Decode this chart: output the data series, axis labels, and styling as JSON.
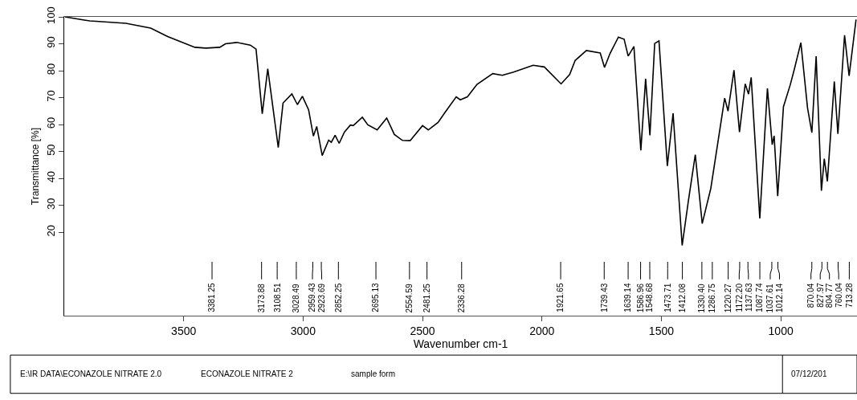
{
  "chart_data": {
    "type": "line",
    "xlabel": "Wavenumber cm-1",
    "ylabel": "Transmittance [%]",
    "xlim": [
      4000,
      681
    ],
    "xticks": [
      3500,
      3000,
      2500,
      2000,
      1500,
      1000
    ],
    "ylim": [
      -11,
      100
    ],
    "yticks": [
      20,
      30,
      40,
      50,
      60,
      70,
      80,
      90,
      100
    ],
    "marker": "none",
    "line_style": "solid",
    "x": [
      3997,
      3916,
      3893,
      3742,
      3638,
      3567,
      3453,
      3406,
      3349,
      3325,
      3278,
      3221,
      3197,
      3171,
      3148,
      3104,
      3084,
      3047,
      3024,
      3003,
      2977,
      2957,
      2943,
      2920,
      2893,
      2882,
      2866,
      2849,
      2827,
      2802,
      2790,
      2752,
      2729,
      2690,
      2650,
      2618,
      2584,
      2552,
      2500,
      2476,
      2435,
      2406,
      2359,
      2342,
      2312,
      2272,
      2206,
      2166,
      2119,
      2037,
      1990,
      1920,
      1884,
      1861,
      1814,
      1756,
      1738,
      1715,
      1680,
      1656,
      1639,
      1615,
      1586,
      1566,
      1548,
      1528,
      1510,
      1475,
      1451,
      1413,
      1387,
      1358,
      1329,
      1293,
      1235,
      1221,
      1196,
      1173,
      1149,
      1135,
      1124,
      1088,
      1056,
      1036,
      1028,
      1013,
      989,
      960,
      943,
      916,
      888,
      870,
      852,
      830,
      818,
      805,
      776,
      761,
      733,
      714,
      685
    ],
    "series": [
      {
        "color": "#000000",
        "values": [
          100,
          98.8,
          98.5,
          97.6,
          95.8,
          92.7,
          88.7,
          88.4,
          88.7,
          90,
          90.5,
          89.5,
          88,
          64,
          80.7,
          51.5,
          68,
          71.4,
          67.4,
          70.5,
          65.5,
          55.7,
          59.3,
          48.5,
          54.2,
          53.4,
          56,
          53,
          57.2,
          59.8,
          59.6,
          62.7,
          59.9,
          58,
          62.4,
          56.3,
          54.1,
          54,
          59.6,
          58,
          60.8,
          64.5,
          70.3,
          69.2,
          70.3,
          74.9,
          78.9,
          78.3,
          79.5,
          82,
          81.4,
          75.1,
          78.6,
          83.8,
          87.5,
          86.6,
          81.2,
          86.4,
          92.5,
          91.7,
          85.4,
          89,
          50.4,
          77,
          56,
          90.1,
          91.1,
          44.6,
          64.2,
          15.1,
          31.6,
          48.8,
          23.2,
          36.3,
          69.8,
          65,
          80.2,
          57.2,
          75.1,
          71.3,
          77.5,
          25.1,
          73.4,
          52.5,
          55.8,
          33.4,
          66.6,
          74.9,
          80.7,
          90.4,
          66.1,
          57,
          85.4,
          35.4,
          47.3,
          38.9,
          76,
          56.5,
          93.2,
          78.1,
          99
        ]
      }
    ],
    "annotations": [
      "3381.25",
      "3173.88",
      "3108.51",
      "3028.49",
      "2959.43",
      "2923.69",
      "2852.25",
      "2695.13",
      "2554.59",
      "2481.25",
      "2336.28",
      "1921.65",
      "1739.43",
      "1639.14",
      "1586.96",
      "1548.68",
      "1473.71",
      "1412.08",
      "1330.40",
      "1286.75",
      "1220.27",
      "1172.20",
      "1137.63",
      "1087.74",
      "1037.61",
      "1012.14",
      "870.04",
      "827.97",
      "804.77",
      "760.04",
      "713.28",
      "E:\\IR DATA\\ECONAZOLE NITRATE 2.0",
      "ECONAZOLE NITRATE 2",
      "sample form",
      "07/12/201"
    ]
  }
}
